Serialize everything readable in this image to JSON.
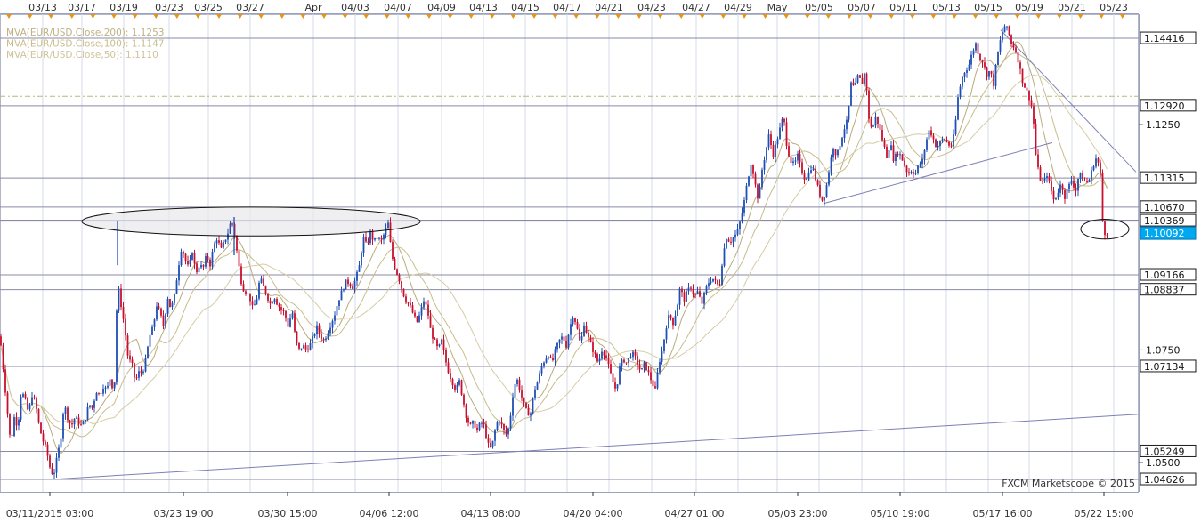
{
  "chart_data": {
    "type": "candlestick",
    "symbol": "EUR/USD",
    "legend": [
      {
        "label": "MVA(EUR/USD.Close,200): 1.1253",
        "color": "#bdb184"
      },
      {
        "label": "MVA(EUR/USD.Close,100): 1.1147",
        "color": "#c9bd8a"
      },
      {
        "label": "MVA(EUR/USD.Close,50): 1.1110",
        "color": "#cfc39a"
      }
    ],
    "watermark": "FXCM Marketscope © 2015",
    "ylim": [
      1.0435,
      1.1495
    ],
    "y_ticks": [
      "1.1250",
      "1.0750",
      "1.0500"
    ],
    "top_dates": [
      "03/13",
      "03/17",
      "03/19",
      "03/23",
      "03/25",
      "03/27",
      "Apr",
      "04/03",
      "04/07",
      "04/09",
      "04/13",
      "04/15",
      "04/17",
      "04/21",
      "04/23",
      "04/27",
      "04/29",
      "May",
      "05/05",
      "05/07",
      "05/11",
      "05/13",
      "05/15",
      "05/19",
      "05/21",
      "05/23"
    ],
    "bottom_dates": [
      "03/11/2015 03:00",
      "03/23 19:00",
      "03/30 15:00",
      "04/06 12:00",
      "04/13 08:00",
      "04/20 04:00",
      "04/27 01:00",
      "05/03 23:00",
      "05/10 19:00",
      "05/17 16:00",
      "05/22 15:00"
    ],
    "horizontal_levels": [
      {
        "label": "1.14416",
        "value": 1.14416
      },
      {
        "label": "1.12920",
        "value": 1.1292
      },
      {
        "label": "1.11315",
        "value": 1.11315
      },
      {
        "label": "1.10670",
        "value": 1.1067
      },
      {
        "label": "1.10369",
        "value": 1.10369
      },
      {
        "label": "1.09166",
        "value": 1.09166
      },
      {
        "label": "1.08837",
        "value": 1.08837
      },
      {
        "label": "1.07134",
        "value": 1.07134
      },
      {
        "label": "1.05249",
        "value": 1.05249
      },
      {
        "label": "1.04626",
        "value": 1.04626
      }
    ],
    "dashed_level": 1.1313,
    "current_price": {
      "label": "1.10092",
      "value": 1.10092
    },
    "price_path": [
      [
        0,
        1.078
      ],
      [
        4,
        1.07
      ],
      [
        8,
        1.062
      ],
      [
        12,
        1.054
      ],
      [
        16,
        1.06
      ],
      [
        20,
        1.058
      ],
      [
        24,
        1.066
      ],
      [
        28,
        1.064
      ],
      [
        32,
        1.061
      ],
      [
        36,
        1.065
      ],
      [
        40,
        1.063
      ],
      [
        44,
        1.058
      ],
      [
        48,
        1.055
      ],
      [
        52,
        1.053
      ],
      [
        56,
        1.049
      ],
      [
        60,
        1.047
      ],
      [
        64,
        1.051
      ],
      [
        68,
        1.055
      ],
      [
        72,
        1.063
      ],
      [
        76,
        1.06
      ],
      [
        80,
        1.058
      ],
      [
        84,
        1.06
      ],
      [
        88,
        1.059
      ],
      [
        92,
        1.058
      ],
      [
        96,
        1.06
      ],
      [
        100,
        1.063
      ],
      [
        104,
        1.062
      ],
      [
        108,
        1.066
      ],
      [
        112,
        1.065
      ],
      [
        116,
        1.067
      ],
      [
        120,
        1.066
      ],
      [
        124,
        1.069
      ],
      [
        128,
        1.065
      ],
      [
        132,
        1.09
      ],
      [
        136,
        1.085
      ],
      [
        140,
        1.08
      ],
      [
        144,
        1.073
      ],
      [
        148,
        1.072
      ],
      [
        152,
        1.068
      ],
      [
        156,
        1.07
      ],
      [
        160,
        1.07
      ],
      [
        164,
        1.073
      ],
      [
        168,
        1.078
      ],
      [
        172,
        1.08
      ],
      [
        176,
        1.085
      ],
      [
        180,
        1.083
      ],
      [
        184,
        1.08
      ],
      [
        188,
        1.087
      ],
      [
        192,
        1.084
      ],
      [
        196,
        1.087
      ],
      [
        200,
        1.093
      ],
      [
        204,
        1.098
      ],
      [
        208,
        1.095
      ],
      [
        212,
        1.093
      ],
      [
        216,
        1.097
      ],
      [
        220,
        1.092
      ],
      [
        224,
        1.094
      ],
      [
        228,
        1.093
      ],
      [
        232,
        1.096
      ],
      [
        236,
        1.094
      ],
      [
        240,
        1.098
      ],
      [
        244,
        1.1
      ],
      [
        248,
        1.097
      ],
      [
        252,
        1.099
      ],
      [
        256,
        1.101
      ],
      [
        260,
        1.104
      ],
      [
        264,
        1.1
      ],
      [
        268,
        1.094
      ],
      [
        272,
        1.089
      ],
      [
        276,
        1.088
      ],
      [
        280,
        1.087
      ],
      [
        284,
        1.084
      ],
      [
        288,
        1.086
      ],
      [
        292,
        1.091
      ],
      [
        296,
        1.089
      ],
      [
        300,
        1.087
      ],
      [
        304,
        1.085
      ],
      [
        308,
        1.087
      ],
      [
        312,
        1.085
      ],
      [
        316,
        1.084
      ],
      [
        320,
        1.083
      ],
      [
        324,
        1.08
      ],
      [
        328,
        1.084
      ],
      [
        332,
        1.077
      ],
      [
        336,
        1.075
      ],
      [
        340,
        1.076
      ],
      [
        344,
        1.075
      ],
      [
        348,
        1.076
      ],
      [
        352,
        1.078
      ],
      [
        356,
        1.08
      ],
      [
        360,
        1.078
      ],
      [
        364,
        1.077
      ],
      [
        368,
        1.079
      ],
      [
        372,
        1.081
      ],
      [
        376,
        1.083
      ],
      [
        380,
        1.086
      ],
      [
        384,
        1.088
      ],
      [
        388,
        1.09
      ],
      [
        392,
        1.09
      ],
      [
        396,
        1.089
      ],
      [
        400,
        1.091
      ],
      [
        404,
        1.094
      ],
      [
        408,
        1.1
      ],
      [
        412,
        1.098
      ],
      [
        416,
        1.101
      ],
      [
        420,
        1.099
      ],
      [
        424,
        1.1
      ],
      [
        428,
        1.099
      ],
      [
        432,
        1.101
      ],
      [
        436,
        1.103
      ],
      [
        440,
        1.096
      ],
      [
        444,
        1.093
      ],
      [
        448,
        1.091
      ],
      [
        452,
        1.088
      ],
      [
        456,
        1.086
      ],
      [
        460,
        1.085
      ],
      [
        464,
        1.083
      ],
      [
        468,
        1.081
      ],
      [
        472,
        1.083
      ],
      [
        476,
        1.086
      ],
      [
        480,
        1.084
      ],
      [
        484,
        1.079
      ],
      [
        488,
        1.077
      ],
      [
        492,
        1.075
      ],
      [
        496,
        1.077
      ],
      [
        500,
        1.073
      ],
      [
        504,
        1.07
      ],
      [
        508,
        1.068
      ],
      [
        512,
        1.066
      ],
      [
        516,
        1.068
      ],
      [
        520,
        1.064
      ],
      [
        524,
        1.06
      ],
      [
        528,
        1.058
      ],
      [
        532,
        1.059
      ],
      [
        536,
        1.057
      ],
      [
        540,
        1.059
      ],
      [
        544,
        1.058
      ],
      [
        548,
        1.054
      ],
      [
        552,
        1.053
      ],
      [
        556,
        1.057
      ],
      [
        560,
        1.06
      ],
      [
        564,
        1.058
      ],
      [
        568,
        1.056
      ],
      [
        572,
        1.058
      ],
      [
        576,
        1.065
      ],
      [
        580,
        1.069
      ],
      [
        584,
        1.066
      ],
      [
        588,
        1.063
      ],
      [
        592,
        1.061
      ],
      [
        596,
        1.061
      ],
      [
        600,
        1.066
      ],
      [
        604,
        1.068
      ],
      [
        608,
        1.071
      ],
      [
        612,
        1.073
      ],
      [
        616,
        1.074
      ],
      [
        620,
        1.072
      ],
      [
        624,
        1.075
      ],
      [
        628,
        1.077
      ],
      [
        632,
        1.078
      ],
      [
        636,
        1.076
      ],
      [
        640,
        1.08
      ],
      [
        644,
        1.083
      ],
      [
        648,
        1.08
      ],
      [
        652,
        1.076
      ],
      [
        656,
        1.081
      ],
      [
        660,
        1.078
      ],
      [
        664,
        1.076
      ],
      [
        668,
        1.074
      ],
      [
        672,
        1.072
      ],
      [
        676,
        1.075
      ],
      [
        680,
        1.074
      ],
      [
        684,
        1.071
      ],
      [
        688,
        1.068
      ],
      [
        692,
        1.066
      ],
      [
        696,
        1.071
      ],
      [
        700,
        1.073
      ],
      [
        704,
        1.072
      ],
      [
        708,
        1.074
      ],
      [
        712,
        1.074
      ],
      [
        716,
        1.072
      ],
      [
        720,
        1.07
      ],
      [
        724,
        1.072
      ],
      [
        728,
        1.07
      ],
      [
        732,
        1.068
      ],
      [
        736,
        1.066
      ],
      [
        740,
        1.072
      ],
      [
        744,
        1.075
      ],
      [
        748,
        1.08
      ],
      [
        752,
        1.083
      ],
      [
        756,
        1.081
      ],
      [
        760,
        1.084
      ],
      [
        764,
        1.089
      ],
      [
        768,
        1.086
      ],
      [
        772,
        1.088
      ],
      [
        776,
        1.089
      ],
      [
        780,
        1.087
      ],
      [
        784,
        1.088
      ],
      [
        788,
        1.085
      ],
      [
        792,
        1.088
      ],
      [
        796,
        1.09
      ],
      [
        800,
        1.091
      ],
      [
        804,
        1.09
      ],
      [
        808,
        1.089
      ],
      [
        812,
        1.096
      ],
      [
        816,
        1.1
      ],
      [
        820,
        1.099
      ],
      [
        824,
        1.1
      ],
      [
        828,
        1.101
      ],
      [
        832,
        1.104
      ],
      [
        836,
        1.108
      ],
      [
        840,
        1.113
      ],
      [
        844,
        1.117
      ],
      [
        848,
        1.112
      ],
      [
        852,
        1.108
      ],
      [
        856,
        1.115
      ],
      [
        860,
        1.119
      ],
      [
        864,
        1.123
      ],
      [
        868,
        1.118
      ],
      [
        872,
        1.121
      ],
      [
        876,
        1.124
      ],
      [
        880,
        1.127
      ],
      [
        884,
        1.12
      ],
      [
        888,
        1.117
      ],
      [
        892,
        1.116
      ],
      [
        896,
        1.118
      ],
      [
        900,
        1.115
      ],
      [
        904,
        1.113
      ],
      [
        908,
        1.114
      ],
      [
        912,
        1.116
      ],
      [
        916,
        1.113
      ],
      [
        920,
        1.11
      ],
      [
        924,
        1.108
      ],
      [
        928,
        1.111
      ],
      [
        932,
        1.116
      ],
      [
        936,
        1.12
      ],
      [
        940,
        1.118
      ],
      [
        944,
        1.121
      ],
      [
        948,
        1.124
      ],
      [
        952,
        1.126
      ],
      [
        956,
        1.134
      ],
      [
        960,
        1.133
      ],
      [
        964,
        1.136
      ],
      [
        968,
        1.134
      ],
      [
        972,
        1.137
      ],
      [
        976,
        1.126
      ],
      [
        980,
        1.124
      ],
      [
        984,
        1.127
      ],
      [
        988,
        1.124
      ],
      [
        992,
        1.121
      ],
      [
        996,
        1.118
      ],
      [
        1000,
        1.121
      ],
      [
        1004,
        1.117
      ],
      [
        1008,
        1.119
      ],
      [
        1012,
        1.118
      ],
      [
        1016,
        1.116
      ],
      [
        1020,
        1.114
      ],
      [
        1024,
        1.115
      ],
      [
        1028,
        1.114
      ],
      [
        1032,
        1.116
      ],
      [
        1036,
        1.117
      ],
      [
        1040,
        1.121
      ],
      [
        1044,
        1.124
      ],
      [
        1048,
        1.122
      ],
      [
        1052,
        1.12
      ],
      [
        1056,
        1.121
      ],
      [
        1060,
        1.122
      ],
      [
        1064,
        1.121
      ],
      [
        1068,
        1.12
      ],
      [
        1072,
        1.123
      ],
      [
        1076,
        1.131
      ],
      [
        1080,
        1.135
      ],
      [
        1084,
        1.137
      ],
      [
        1088,
        1.138
      ],
      [
        1092,
        1.141
      ],
      [
        1096,
        1.143
      ],
      [
        1100,
        1.14
      ],
      [
        1104,
        1.139
      ],
      [
        1108,
        1.136
      ],
      [
        1112,
        1.137
      ],
      [
        1116,
        1.134
      ],
      [
        1120,
        1.14
      ],
      [
        1124,
        1.144
      ],
      [
        1128,
        1.147
      ],
      [
        1132,
        1.146
      ],
      [
        1136,
        1.143
      ],
      [
        1140,
        1.142
      ],
      [
        1144,
        1.139
      ],
      [
        1148,
        1.135
      ],
      [
        1152,
        1.133
      ],
      [
        1156,
        1.131
      ],
      [
        1160,
        1.128
      ],
      [
        1164,
        1.117
      ],
      [
        1168,
        1.113
      ],
      [
        1172,
        1.112
      ],
      [
        1176,
        1.114
      ],
      [
        1180,
        1.111
      ],
      [
        1184,
        1.108
      ],
      [
        1188,
        1.11
      ],
      [
        1192,
        1.112
      ],
      [
        1196,
        1.109
      ],
      [
        1200,
        1.111
      ],
      [
        1204,
        1.113
      ],
      [
        1208,
        1.11
      ],
      [
        1212,
        1.114
      ],
      [
        1216,
        1.113
      ],
      [
        1220,
        1.112
      ],
      [
        1224,
        1.113
      ],
      [
        1228,
        1.116
      ],
      [
        1232,
        1.118
      ],
      [
        1236,
        1.114
      ],
      [
        1238,
        1.104
      ],
      [
        1241,
        1.101
      ],
      [
        1244,
        1.1009
      ]
    ],
    "ma_series": [
      {
        "name": "MVA(EUR/USD.Close,50)",
        "period": 10,
        "color": "#b8ab7c"
      },
      {
        "name": "MVA(EUR/USD.Close,100)",
        "period": 20,
        "color": "#c9bd8a"
      },
      {
        "name": "MVA(EUR/USD.Close,200)",
        "period": 40,
        "color": "#d6cca4"
      }
    ],
    "trend_lines": [
      {
        "from": [
          60,
          1.0463
        ],
        "to": [
          1278,
          1.0607
        ]
      },
      {
        "from": [
          925,
          1.1075
        ],
        "to": [
          1182,
          1.121
        ]
      },
      {
        "from": [
          1124,
          1.146
        ],
        "to": [
          1276,
          1.1145
        ]
      }
    ],
    "ellipses": [
      {
        "cx": 282,
        "rx": 190,
        "y_value": 1.1035,
        "ry_value": 0.0032
      },
      {
        "cx": 1241,
        "rx": 27,
        "y_value": 1.1018,
        "ry_value": 0.0022
      }
    ]
  }
}
